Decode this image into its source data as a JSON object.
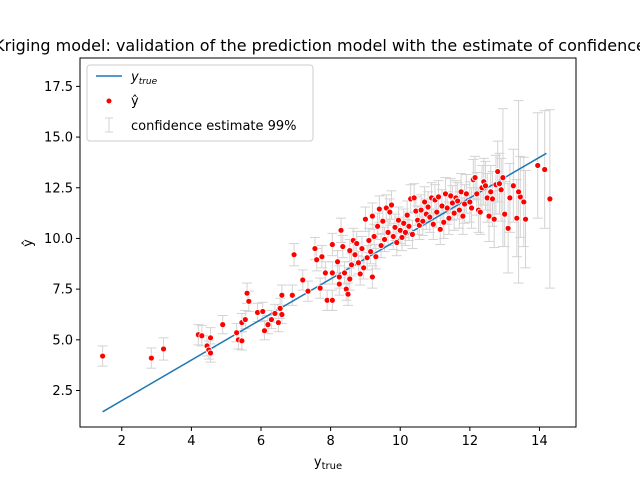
{
  "chart_data": {
    "type": "scatter",
    "title": "Kriging model: validation of the prediction model with the estimate of confidence",
    "xlabel": "y_true",
    "ylabel": "ŷ",
    "xlim": [
      0.8,
      15.05
    ],
    "ylim": [
      0.7,
      18.9
    ],
    "xticks": [
      2,
      4,
      6,
      8,
      10,
      12,
      14
    ],
    "yticks": [
      2.5,
      5.0,
      7.5,
      10.0,
      12.5,
      15.0,
      17.5
    ],
    "grid": false,
    "legend_position": "upper-left",
    "series": [
      {
        "name": "y_true",
        "kind": "line",
        "color": "#1f77b4",
        "x": [
          1.45,
          14.2
        ],
        "y": [
          1.45,
          14.2
        ]
      },
      {
        "name": "ŷ",
        "kind": "scatter",
        "color": "#ff0000",
        "points": [
          [
            1.45,
            4.2,
            0.5
          ],
          [
            2.85,
            4.1,
            0.5
          ],
          [
            3.2,
            4.55,
            0.55
          ],
          [
            4.2,
            5.25,
            0.5
          ],
          [
            4.3,
            5.2,
            0.5
          ],
          [
            4.45,
            4.7,
            0.5
          ],
          [
            4.5,
            4.5,
            0.45
          ],
          [
            4.55,
            4.35,
            0.45
          ],
          [
            4.55,
            5.1,
            0.5
          ],
          [
            4.9,
            5.75,
            0.45
          ],
          [
            5.3,
            5.35,
            0.45
          ],
          [
            5.35,
            5.0,
            0.45
          ],
          [
            5.45,
            4.95,
            0.45
          ],
          [
            5.45,
            5.85,
            0.45
          ],
          [
            5.55,
            6.0,
            0.45
          ],
          [
            5.6,
            7.3,
            0.5
          ],
          [
            5.65,
            6.9,
            0.5
          ],
          [
            5.9,
            6.35,
            0.45
          ],
          [
            6.05,
            6.4,
            0.45
          ],
          [
            6.1,
            5.45,
            0.45
          ],
          [
            6.2,
            5.75,
            0.45
          ],
          [
            6.3,
            6.0,
            0.45
          ],
          [
            6.4,
            6.3,
            0.45
          ],
          [
            6.5,
            5.85,
            0.45
          ],
          [
            6.55,
            6.55,
            0.5
          ],
          [
            6.6,
            6.25,
            0.45
          ],
          [
            6.6,
            7.2,
            0.5
          ],
          [
            6.9,
            7.2,
            0.5
          ],
          [
            6.95,
            9.2,
            0.55
          ],
          [
            7.2,
            7.95,
            0.5
          ],
          [
            7.35,
            7.4,
            0.5
          ],
          [
            7.55,
            9.5,
            0.55
          ],
          [
            7.6,
            8.95,
            0.55
          ],
          [
            7.7,
            7.55,
            0.5
          ],
          [
            7.75,
            9.1,
            0.55
          ],
          [
            7.85,
            8.3,
            0.55
          ],
          [
            7.9,
            6.95,
            0.5
          ],
          [
            8.05,
            6.95,
            0.5
          ],
          [
            8.05,
            8.3,
            0.55
          ],
          [
            8.05,
            9.7,
            0.55
          ],
          [
            8.2,
            8.85,
            0.55
          ],
          [
            8.25,
            8.1,
            0.55
          ],
          [
            8.25,
            7.75,
            0.55
          ],
          [
            8.3,
            10.4,
            0.6
          ],
          [
            8.35,
            9.6,
            0.55
          ],
          [
            8.4,
            8.3,
            0.55
          ],
          [
            8.45,
            7.5,
            0.55
          ],
          [
            8.5,
            7.25,
            0.55
          ],
          [
            8.55,
            8.0,
            0.55
          ],
          [
            8.55,
            9.4,
            0.55
          ],
          [
            8.6,
            8.7,
            0.55
          ],
          [
            8.65,
            9.9,
            0.6
          ],
          [
            8.7,
            9.2,
            0.55
          ],
          [
            8.75,
            9.75,
            0.6
          ],
          [
            8.8,
            8.8,
            0.55
          ],
          [
            8.85,
            8.25,
            0.55
          ],
          [
            8.9,
            9.5,
            0.6
          ],
          [
            8.95,
            8.55,
            0.55
          ],
          [
            9.0,
            10.95,
            0.6
          ],
          [
            9.05,
            9.05,
            0.6
          ],
          [
            9.1,
            9.9,
            0.6
          ],
          [
            9.15,
            9.35,
            0.6
          ],
          [
            9.2,
            11.1,
            0.65
          ],
          [
            9.2,
            8.1,
            0.55
          ],
          [
            9.25,
            10.1,
            0.6
          ],
          [
            9.3,
            9.1,
            0.6
          ],
          [
            9.35,
            10.6,
            0.65
          ],
          [
            9.4,
            11.45,
            0.65
          ],
          [
            9.45,
            9.65,
            0.6
          ],
          [
            9.5,
            10.85,
            0.65
          ],
          [
            9.55,
            9.95,
            0.6
          ],
          [
            9.6,
            11.5,
            0.65
          ],
          [
            9.65,
            10.3,
            0.65
          ],
          [
            9.7,
            11.3,
            0.65
          ],
          [
            9.75,
            11.65,
            0.7
          ],
          [
            9.8,
            10.1,
            0.65
          ],
          [
            9.85,
            10.55,
            0.65
          ],
          [
            9.9,
            9.8,
            0.65
          ],
          [
            9.95,
            10.9,
            0.65
          ],
          [
            10.0,
            10.4,
            0.65
          ],
          [
            10.05,
            10.05,
            0.65
          ],
          [
            10.1,
            10.75,
            0.7
          ],
          [
            10.15,
            10.3,
            0.65
          ],
          [
            10.2,
            11.15,
            0.7
          ],
          [
            10.25,
            10.6,
            0.7
          ],
          [
            10.3,
            11.95,
            0.7
          ],
          [
            10.35,
            10.2,
            0.7
          ],
          [
            10.4,
            12.0,
            0.7
          ],
          [
            10.45,
            11.35,
            0.7
          ],
          [
            10.5,
            10.9,
            0.7
          ],
          [
            10.55,
            10.65,
            0.7
          ],
          [
            10.6,
            11.4,
            0.75
          ],
          [
            10.65,
            10.85,
            0.7
          ],
          [
            10.7,
            11.8,
            0.75
          ],
          [
            10.75,
            11.2,
            0.75
          ],
          [
            10.8,
            11.55,
            0.75
          ],
          [
            10.85,
            11.05,
            0.75
          ],
          [
            10.9,
            12.0,
            0.75
          ],
          [
            10.95,
            10.7,
            0.75
          ],
          [
            11.0,
            11.9,
            0.75
          ],
          [
            11.05,
            11.3,
            0.75
          ],
          [
            11.1,
            12.05,
            0.8
          ],
          [
            11.15,
            10.45,
            0.75
          ],
          [
            11.2,
            11.6,
            0.8
          ],
          [
            11.25,
            10.8,
            0.8
          ],
          [
            11.3,
            12.2,
            0.8
          ],
          [
            11.35,
            11.5,
            0.8
          ],
          [
            11.4,
            11.0,
            0.8
          ],
          [
            11.45,
            12.1,
            0.85
          ],
          [
            11.5,
            11.75,
            0.85
          ],
          [
            11.55,
            11.25,
            0.85
          ],
          [
            11.6,
            12.0,
            0.85
          ],
          [
            11.65,
            11.85,
            0.9
          ],
          [
            11.7,
            11.4,
            0.9
          ],
          [
            11.75,
            12.3,
            0.9
          ],
          [
            11.8,
            11.1,
            0.9
          ],
          [
            11.85,
            11.7,
            0.95
          ],
          [
            11.9,
            12.2,
            0.95
          ],
          [
            12.0,
            11.8,
            1.0
          ],
          [
            12.05,
            11.5,
            1.0
          ],
          [
            12.1,
            12.9,
            1.0
          ],
          [
            12.15,
            13.0,
            1.05
          ],
          [
            12.2,
            12.2,
            1.05
          ],
          [
            12.25,
            11.4,
            1.1
          ],
          [
            12.3,
            11.3,
            1.1
          ],
          [
            12.35,
            12.5,
            1.1
          ],
          [
            12.4,
            12.8,
            1.15
          ],
          [
            12.45,
            12.6,
            1.2
          ],
          [
            12.5,
            12.0,
            1.2
          ],
          [
            12.55,
            11.1,
            1.25
          ],
          [
            12.6,
            12.3,
            1.3
          ],
          [
            12.65,
            11.95,
            1.35
          ],
          [
            12.7,
            10.95,
            1.4
          ],
          [
            12.75,
            12.65,
            1.45
          ],
          [
            12.8,
            13.3,
            1.5
          ],
          [
            12.85,
            12.7,
            1.5
          ],
          [
            12.9,
            12.4,
            1.55
          ],
          [
            13.0,
            11.2,
            1.6
          ],
          [
            13.15,
            12.0,
            1.7
          ],
          [
            13.25,
            12.6,
            1.8
          ],
          [
            13.35,
            11.0,
            1.9
          ],
          [
            13.45,
            12.05,
            2.0
          ],
          [
            13.55,
            11.8,
            2.2
          ],
          [
            13.6,
            10.95,
            2.4
          ],
          [
            13.95,
            13.6,
            2.6
          ],
          [
            14.15,
            13.4,
            2.9
          ],
          [
            14.3,
            11.95,
            4.4
          ],
          [
            13.1,
            10.5,
            2.2
          ],
          [
            12.95,
            13.0,
            3.4
          ],
          [
            13.4,
            12.3,
            4.5
          ]
        ]
      },
      {
        "name": "confidence estimate 99%",
        "kind": "errorbar",
        "color": "#d3d3d3"
      }
    ]
  }
}
